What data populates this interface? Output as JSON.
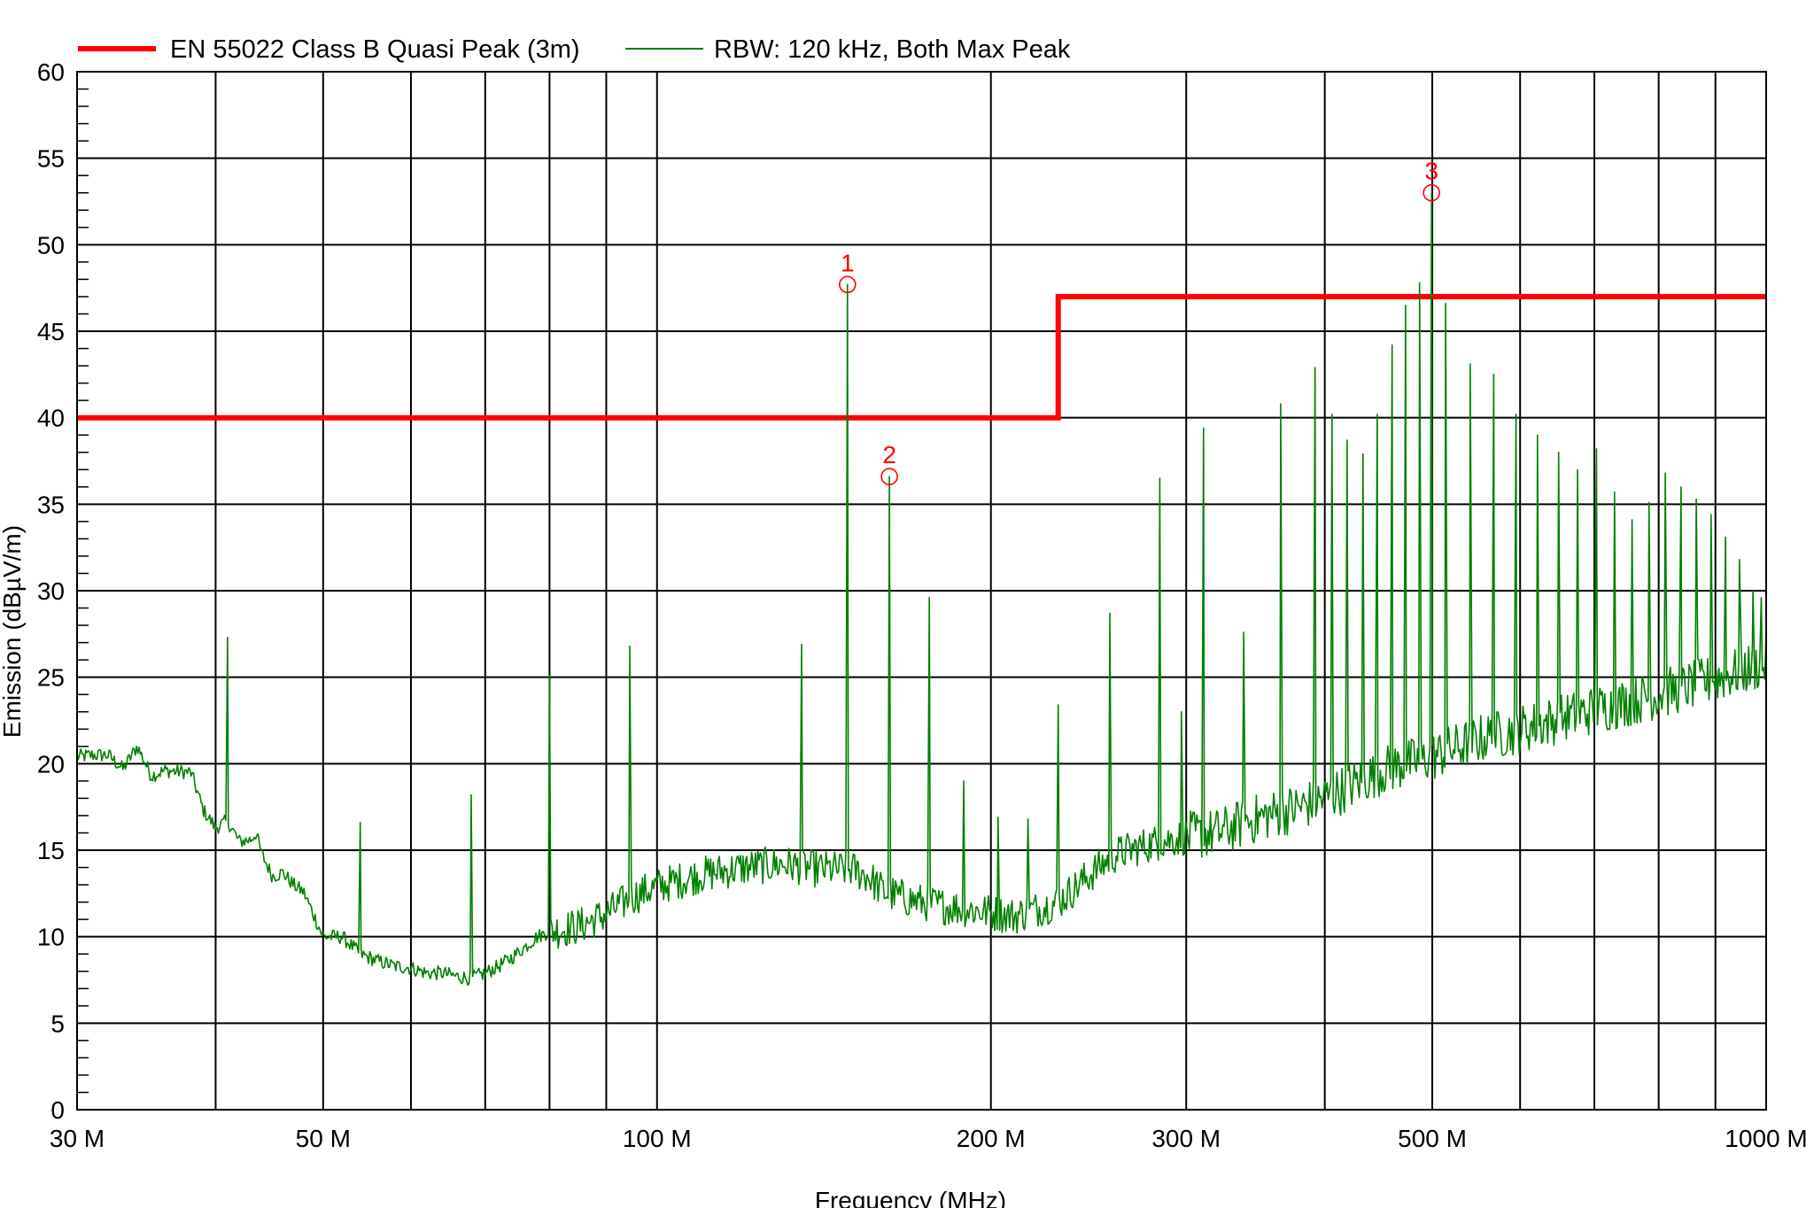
{
  "chart_data": {
    "type": "line",
    "xscale": "log",
    "xlabel": "Frequency (MHz)",
    "ylabel": "Emission (dBµV/m)",
    "xlim": [
      30,
      1000
    ],
    "ylim": [
      0,
      60
    ],
    "grid": true,
    "legend_position": "top",
    "x_ticks": [
      {
        "value": 30,
        "label": "30 M"
      },
      {
        "value": 50,
        "label": "50 M"
      },
      {
        "value": 100,
        "label": "100 M"
      },
      {
        "value": 200,
        "label": "200 M"
      },
      {
        "value": 300,
        "label": "300 M"
      },
      {
        "value": 500,
        "label": "500 M"
      },
      {
        "value": 1000,
        "label": "1000 M"
      }
    ],
    "x_gridlines": [
      30,
      40,
      50,
      60,
      70,
      80,
      90,
      100,
      200,
      300,
      400,
      500,
      600,
      700,
      800,
      900,
      1000
    ],
    "y_ticks": [
      0,
      5,
      10,
      15,
      20,
      25,
      30,
      35,
      40,
      45,
      50,
      55,
      60
    ],
    "series": [
      {
        "name": "EN 55022 Class B Quasi Peak (3m)",
        "color": "#ff0000",
        "kind": "limit",
        "points": [
          [
            30,
            40
          ],
          [
            230,
            40
          ],
          [
            230,
            47
          ],
          [
            1000,
            47
          ]
        ]
      },
      {
        "name": "RBW: 120 kHz, Both Max Peak",
        "color": "#008000",
        "kind": "trace",
        "baseline": [
          [
            30,
            20.4
          ],
          [
            31,
            20.5
          ],
          [
            32,
            20.5
          ],
          [
            33,
            19.7
          ],
          [
            34,
            21.0
          ],
          [
            35,
            19.3
          ],
          [
            36,
            19.6
          ],
          [
            38,
            19.5
          ],
          [
            39,
            17.3
          ],
          [
            40,
            16.3
          ],
          [
            41,
            16.7
          ],
          [
            42,
            15.5
          ],
          [
            43,
            15.6
          ],
          [
            43.5,
            16.0
          ],
          [
            44,
            14.8
          ],
          [
            45,
            13.5
          ],
          [
            46,
            13.7
          ],
          [
            47,
            13.0
          ],
          [
            48,
            12.6
          ],
          [
            49,
            11.3
          ],
          [
            50,
            10.0
          ],
          [
            52,
            10.0
          ],
          [
            54,
            9.0
          ],
          [
            56,
            8.6
          ],
          [
            58,
            8.3
          ],
          [
            60,
            8.2
          ],
          [
            62,
            7.9
          ],
          [
            64,
            7.9
          ],
          [
            66,
            7.7
          ],
          [
            68,
            7.6
          ],
          [
            70,
            7.9
          ],
          [
            72,
            8.3
          ],
          [
            74,
            8.8
          ],
          [
            76,
            9.4
          ],
          [
            78,
            10.0
          ],
          [
            80,
            10.3
          ],
          [
            85,
            10.6
          ],
          [
            90,
            11.3
          ],
          [
            95,
            12.3
          ],
          [
            100,
            12.9
          ],
          [
            110,
            13.6
          ],
          [
            120,
            14.0
          ],
          [
            130,
            14.2
          ],
          [
            140,
            13.9
          ],
          [
            150,
            13.9
          ],
          [
            155,
            13.5
          ],
          [
            160,
            12.6
          ],
          [
            170,
            12.1
          ],
          [
            180,
            11.8
          ],
          [
            190,
            11.6
          ],
          [
            200,
            11.4
          ],
          [
            210,
            11.2
          ],
          [
            220,
            11.6
          ],
          [
            230,
            12.0
          ],
          [
            240,
            13.0
          ],
          [
            250,
            14.0
          ],
          [
            260,
            14.8
          ],
          [
            280,
            15.4
          ],
          [
            300,
            15.8
          ],
          [
            320,
            16.0
          ],
          [
            350,
            16.9
          ],
          [
            380,
            17.5
          ],
          [
            400,
            18.0
          ],
          [
            450,
            19.6
          ],
          [
            500,
            20.4
          ],
          [
            550,
            21.4
          ],
          [
            600,
            22.0
          ],
          [
            700,
            23.1
          ],
          [
            800,
            24.0
          ],
          [
            900,
            24.9
          ],
          [
            1000,
            25.8
          ]
        ],
        "noise_amplitude": 1.2,
        "spikes": [
          [
            41,
            27.3
          ],
          [
            54,
            16.6
          ],
          [
            68,
            18.2
          ],
          [
            80,
            25.1
          ],
          [
            94.5,
            26.8
          ],
          [
            135,
            26.9
          ],
          [
            148.5,
            47.7
          ],
          [
            162,
            36.6
          ],
          [
            176,
            29.6
          ],
          [
            189,
            19.0
          ],
          [
            203,
            16.9
          ],
          [
            216,
            16.8
          ],
          [
            230,
            23.4
          ],
          [
            256,
            28.7
          ],
          [
            284,
            36.5
          ],
          [
            297,
            23.0
          ],
          [
            311,
            39.4
          ],
          [
            338,
            27.6
          ],
          [
            365,
            40.8
          ],
          [
            392,
            42.9
          ],
          [
            406,
            40.2
          ],
          [
            419,
            38.7
          ],
          [
            433,
            37.9
          ],
          [
            446,
            40.2
          ],
          [
            460,
            44.2
          ],
          [
            473,
            46.5
          ],
          [
            487,
            47.8
          ],
          [
            499.2,
            53.0
          ],
          [
            514,
            46.6
          ],
          [
            541,
            43.1
          ],
          [
            568,
            42.5
          ],
          [
            595,
            40.2
          ],
          [
            622,
            39.0
          ],
          [
            650,
            38.0
          ],
          [
            676,
            37.0
          ],
          [
            703,
            38.2
          ],
          [
            730,
            35.7
          ],
          [
            757,
            34.1
          ],
          [
            784,
            35.1
          ],
          [
            811,
            36.8
          ],
          [
            838,
            36.0
          ],
          [
            865,
            35.3
          ],
          [
            892,
            34.4
          ],
          [
            919,
            33.1
          ],
          [
            946,
            31.8
          ],
          [
            973,
            30.0
          ],
          [
            990,
            29.6
          ]
        ]
      }
    ],
    "markers": [
      {
        "label": "1",
        "x": 148.5,
        "y": 47.7
      },
      {
        "label": "2",
        "x": 162,
        "y": 36.6
      },
      {
        "label": "3",
        "x": 499.2,
        "y": 53.0
      }
    ],
    "colors": {
      "limit": "#ff0000",
      "trace": "#008000",
      "marker": "#ff0000",
      "grid": "#000000",
      "background": "#ffffff"
    }
  }
}
